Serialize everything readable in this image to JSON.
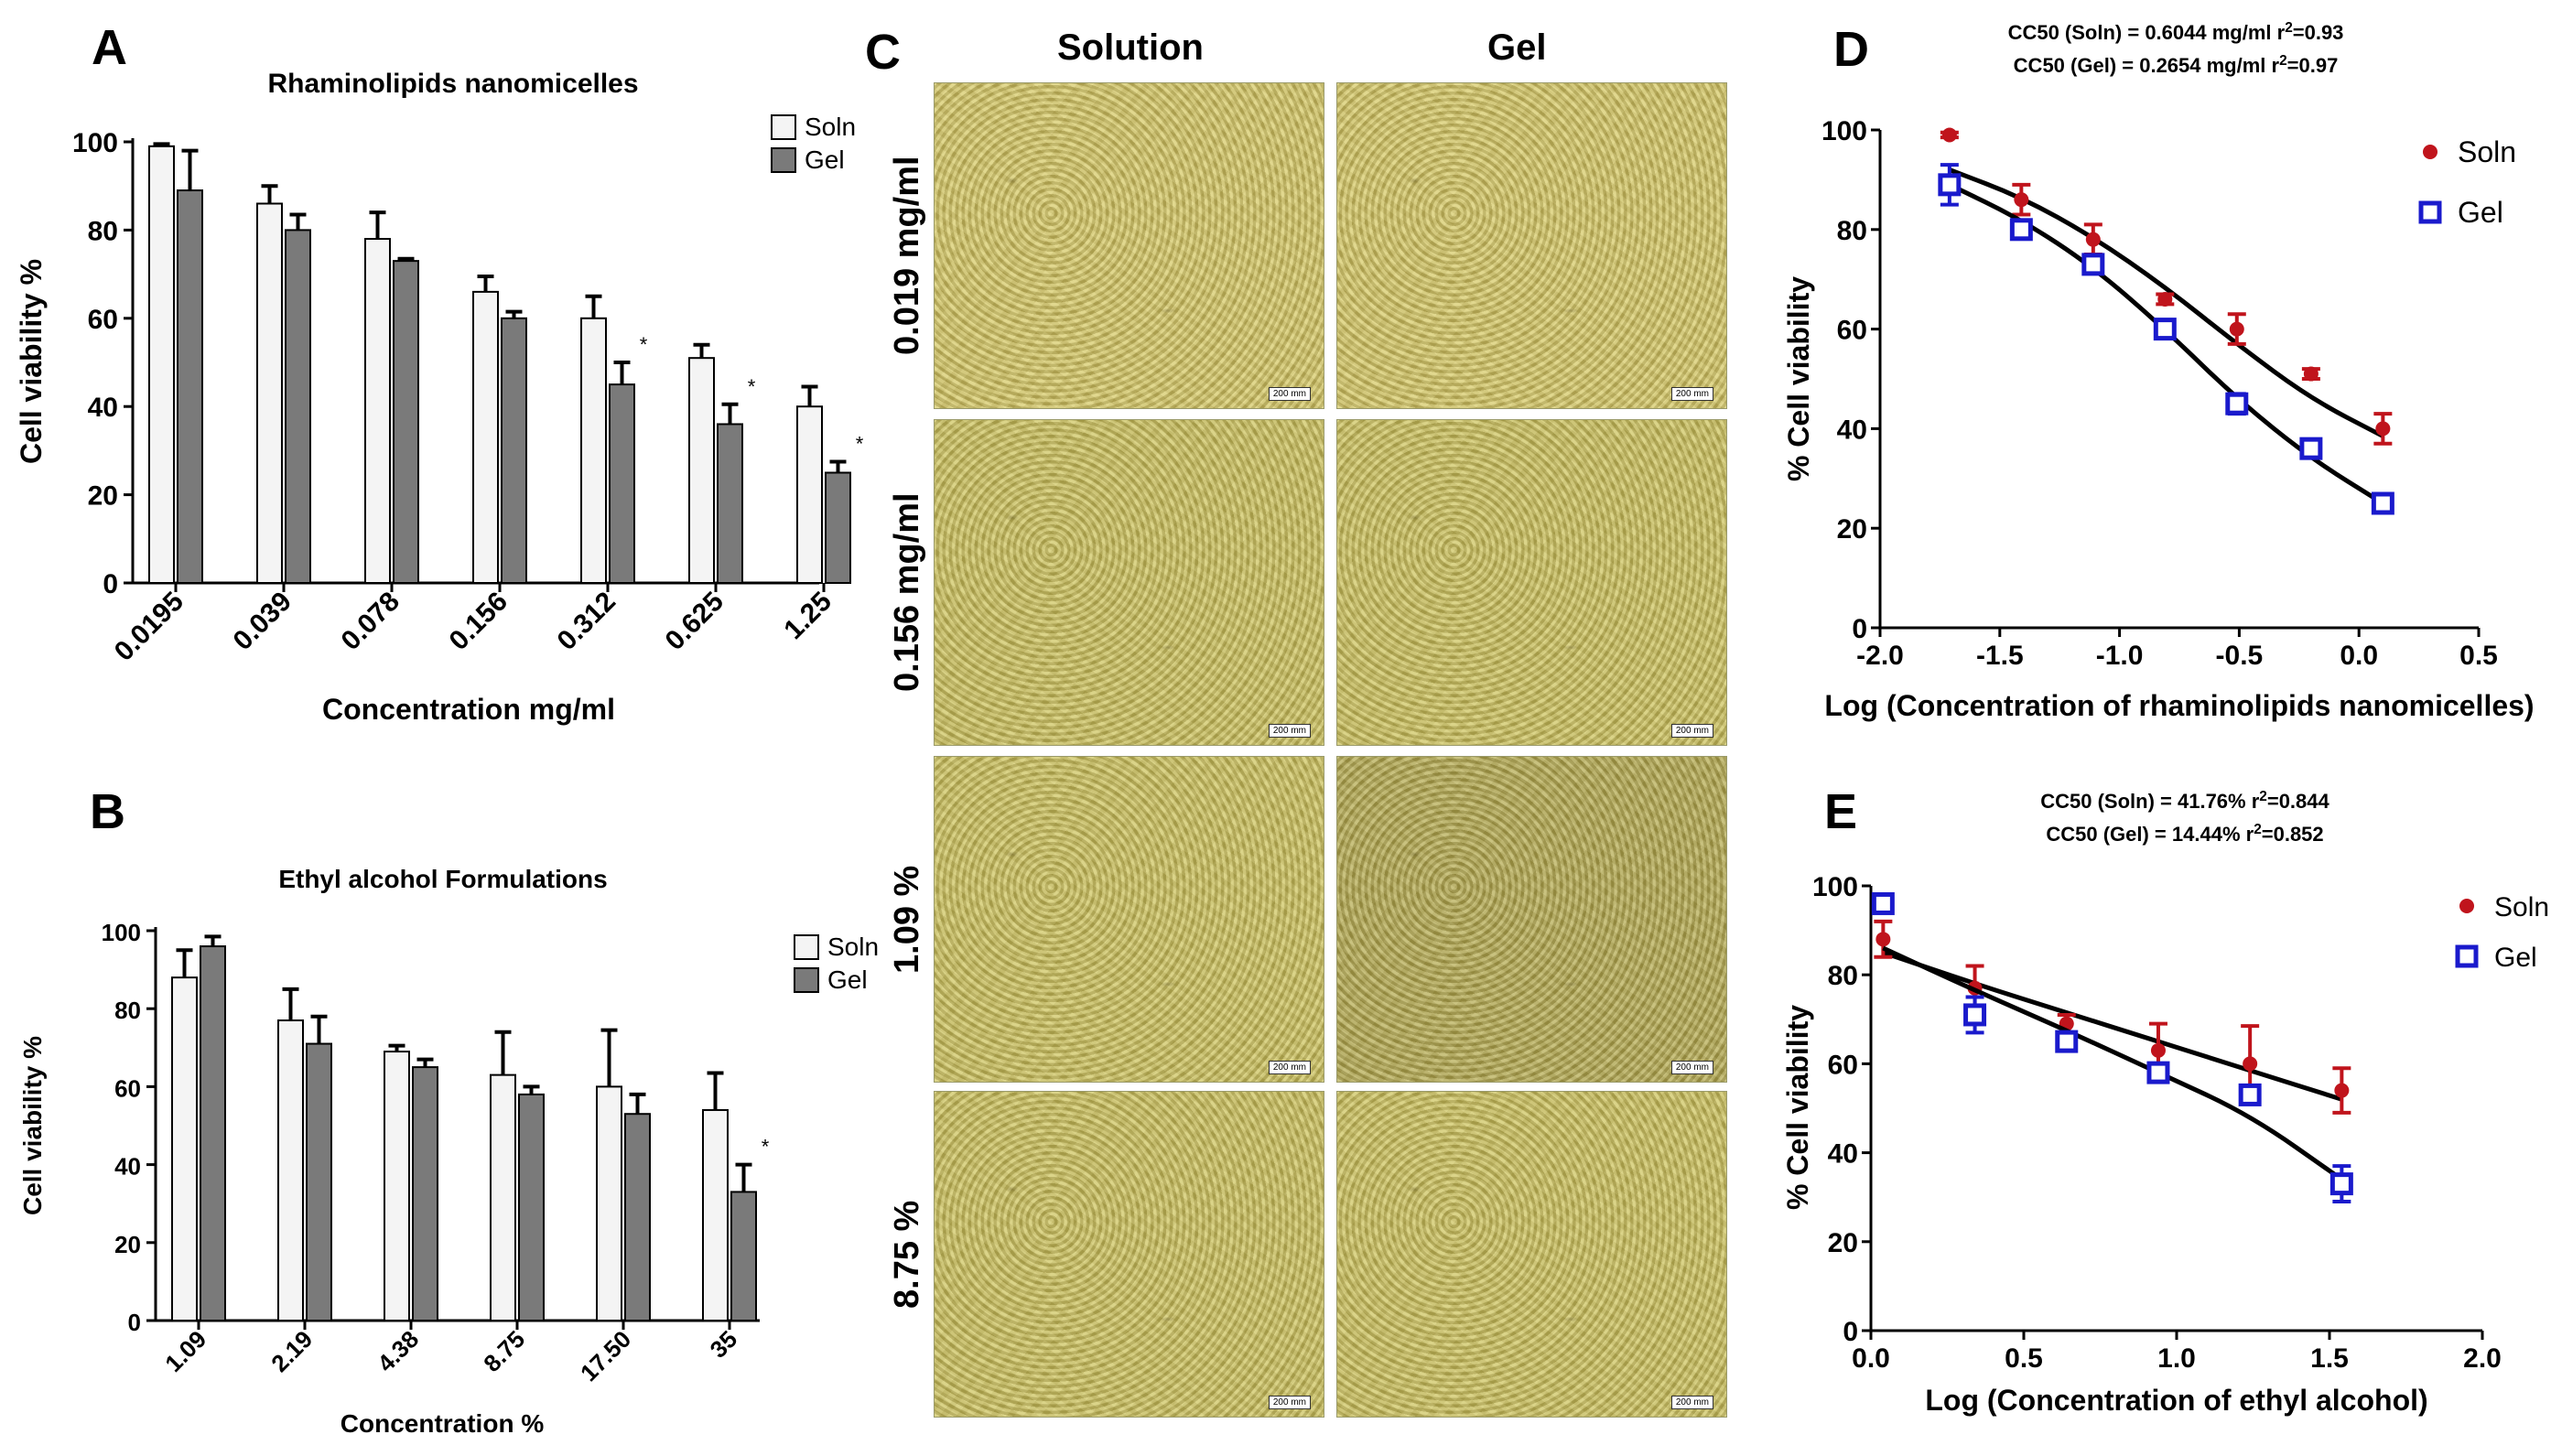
{
  "panel_letters": {
    "a": "A",
    "b": "B",
    "c": "C",
    "d": "D",
    "e": "E"
  },
  "colors": {
    "soln_bar": "#f4f4f4",
    "gel_bar": "#7a7a7a",
    "soln_point": "#c0141c",
    "gel_point": "#1a1acc",
    "micro_bg": "#c7b95a"
  },
  "chart_data": [
    {
      "id": "A",
      "type": "bar",
      "title": "Rhaminolipids nanomicelles",
      "xlabel": "Concentration mg/ml",
      "ylabel": "Cell viability %",
      "ylim": [
        0,
        100
      ],
      "yticks": [
        0,
        20,
        40,
        60,
        80,
        100
      ],
      "categories": [
        "0.0195",
        "0.039",
        "0.078",
        "0.156",
        "0.312",
        "0.625",
        "1.25"
      ],
      "series": [
        {
          "name": "Soln",
          "values": [
            99,
            86,
            78,
            66,
            60,
            51,
            40
          ],
          "errors": [
            0.5,
            4,
            6,
            3.5,
            5,
            3,
            4.5
          ]
        },
        {
          "name": "Gel",
          "values": [
            89,
            80,
            73,
            60,
            45,
            36,
            25
          ],
          "errors": [
            9,
            3.5,
            0.5,
            1.5,
            5,
            4.5,
            2.5
          ]
        }
      ],
      "significance": [
        "",
        "",
        "",
        "",
        "*",
        "*",
        "*"
      ],
      "legend": "top-right"
    },
    {
      "id": "B",
      "type": "bar",
      "title": "Ethyl alcohol Formulations",
      "xlabel": "Concentration %",
      "ylabel": "Cell viability %",
      "ylim": [
        0,
        100
      ],
      "yticks": [
        0,
        20,
        40,
        60,
        80,
        100
      ],
      "categories": [
        "1.09",
        "2.19",
        "4.38",
        "8.75",
        "17.50",
        "35"
      ],
      "series": [
        {
          "name": "Soln",
          "values": [
            88,
            77,
            69,
            63,
            60,
            54
          ],
          "errors": [
            7,
            8,
            1.5,
            11,
            14.5,
            9.5
          ]
        },
        {
          "name": "Gel",
          "values": [
            96,
            71,
            65,
            58,
            53,
            33
          ],
          "errors": [
            2.5,
            7,
            2,
            2,
            5,
            7
          ]
        }
      ],
      "significance": [
        "",
        "",
        "",
        "",
        "",
        "*"
      ],
      "legend": "right"
    },
    {
      "id": "D",
      "type": "scatter",
      "annotation": [
        "CC50 (Soln) = 0.6044 mg/ml r",
        "2",
        "=0.93",
        "CC50 (Gel) = 0.2654 mg/ml r",
        "2",
        "=0.97"
      ],
      "xlabel": "Log (Concentration of rhaminolipids nanomicelles)",
      "ylabel": "% Cell viability",
      "xlim": [
        -2.0,
        0.5
      ],
      "ylim": [
        0,
        100
      ],
      "xticks": [
        "-2.0",
        "-1.5",
        "-1.0",
        "-0.5",
        "0.0",
        "0.5"
      ],
      "yticks": [
        0,
        20,
        40,
        60,
        80,
        100
      ],
      "series": [
        {
          "name": "Soln",
          "marker": "circle",
          "x": [
            -1.71,
            -1.41,
            -1.11,
            -0.81,
            -0.51,
            -0.2,
            0.1
          ],
          "y": [
            99,
            86,
            78,
            66,
            60,
            51,
            40
          ],
          "errors": [
            0.5,
            3,
            3,
            1,
            3,
            1,
            3
          ],
          "fit_y": [
            92,
            86.5,
            78.5,
            68.5,
            57,
            46,
            38.5
          ]
        },
        {
          "name": "Gel",
          "marker": "square",
          "x": [
            -1.71,
            -1.41,
            -1.11,
            -0.81,
            -0.51,
            -0.2,
            0.1
          ],
          "y": [
            89,
            80,
            73,
            60,
            45,
            36,
            25
          ],
          "errors": [
            4,
            1,
            1,
            1,
            2,
            1,
            1
          ],
          "fit_y": [
            89,
            82,
            72.5,
            60,
            46,
            34,
            25
          ]
        }
      ],
      "legend": "top-right"
    },
    {
      "id": "E",
      "type": "scatter",
      "annotation": [
        "CC50 (Soln) = 41.76% r",
        "2",
        "=0.844",
        "CC50 (Gel) = 14.44% r",
        "2",
        "=0.852"
      ],
      "xlabel": "Log (Concentration of ethyl alcohol)",
      "ylabel": "% Cell viability",
      "xlim": [
        0.0,
        2.0
      ],
      "ylim": [
        0,
        100
      ],
      "xticks": [
        "0.0",
        "0.5",
        "1.0",
        "1.5",
        "2.0"
      ],
      "yticks": [
        0,
        20,
        40,
        60,
        80,
        100
      ],
      "series": [
        {
          "name": "Soln",
          "marker": "circle",
          "x": [
            0.04,
            0.34,
            0.64,
            0.94,
            1.24,
            1.54
          ],
          "y": [
            88,
            77,
            69,
            63,
            60,
            54
          ],
          "errors": [
            4,
            5,
            2,
            6,
            8.5,
            5
          ],
          "fit_y": [
            85,
            78,
            71.5,
            65,
            58.5,
            52
          ]
        },
        {
          "name": "Gel",
          "marker": "square",
          "x": [
            0.04,
            0.34,
            0.64,
            0.94,
            1.24,
            1.54
          ],
          "y": [
            96,
            71,
            65,
            58,
            53,
            33
          ],
          "errors": [
            1,
            4,
            1,
            1,
            1,
            4
          ],
          "fit_y": [
            86,
            76.5,
            67.5,
            58,
            48.5,
            34
          ]
        }
      ],
      "legend": "right"
    }
  ],
  "micrographs": {
    "col_headers": [
      "Solution",
      "Gel"
    ],
    "row_labels": [
      "0.019  mg/ml",
      "0.156  mg/ml",
      "1.09 %",
      "8.75 %"
    ],
    "scale_label": "200 mm"
  }
}
